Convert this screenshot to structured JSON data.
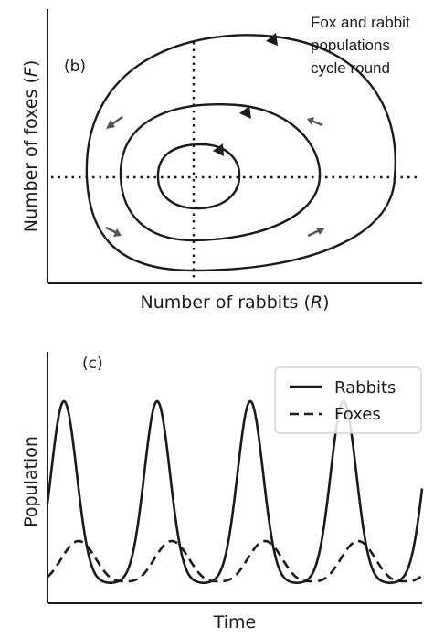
{
  "annotation": {
    "line1": "Fox and rabbit",
    "line2": "populations",
    "line3": "cycle round"
  },
  "panel_b": {
    "label": "(b)",
    "xlabel_prefix": "Number of rabbits (",
    "xlabel_var": "R",
    "xlabel_suffix": ")",
    "ylabel_prefix": "Number of foxes (",
    "ylabel_var": "F",
    "ylabel_suffix": ")"
  },
  "panel_c": {
    "label": "(c)",
    "xlabel": "Time",
    "ylabel": "Population",
    "legend": {
      "rabbits": "Rabbits",
      "foxes": "Foxes"
    }
  },
  "colors": {
    "ink": "#1a1a1a",
    "arrow": "#555555",
    "background": "#ffffff"
  }
}
